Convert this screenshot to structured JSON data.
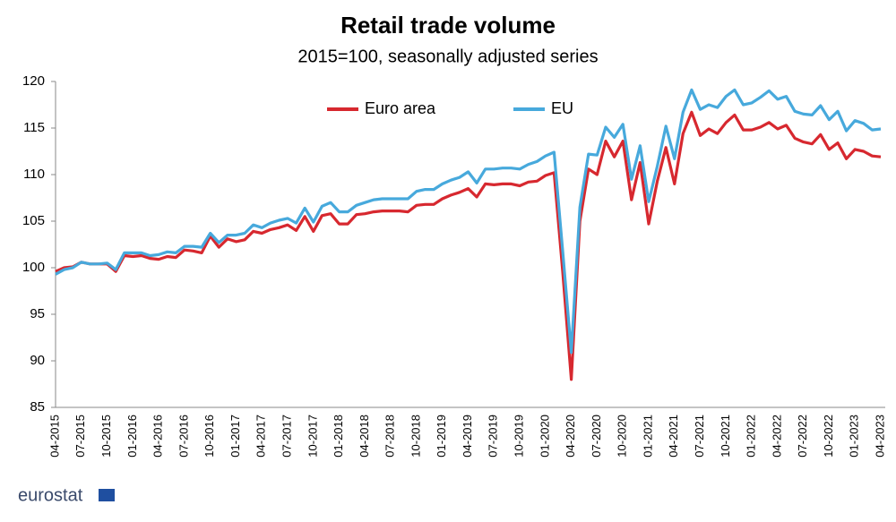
{
  "chart_data": {
    "type": "line",
    "title": "Retail trade volume",
    "subtitle": "2015=100, seasonally adjusted series",
    "source_logo": "eurostat",
    "categories": [
      "04-2015",
      null,
      null,
      "07-2015",
      null,
      null,
      "10-2015",
      null,
      null,
      "01-2016",
      null,
      null,
      "04-2016",
      null,
      null,
      "07-2016",
      null,
      null,
      "10-2016",
      null,
      null,
      "01-2017",
      null,
      null,
      "04-2017",
      null,
      null,
      "07-2017",
      null,
      null,
      "10-2017",
      null,
      null,
      "01-2018",
      null,
      null,
      "04-2018",
      null,
      null,
      "07-2018",
      null,
      null,
      "10-2018",
      null,
      null,
      "01-2019",
      null,
      null,
      "04-2019",
      null,
      null,
      "07-2019",
      null,
      null,
      "10-2019",
      null,
      null,
      "01-2020",
      null,
      null,
      "04-2020",
      null,
      null,
      "07-2020",
      null,
      null,
      "10-2020",
      null,
      null,
      "01-2021",
      null,
      null,
      "04-2021",
      null,
      null,
      "07-2021",
      null,
      null,
      "10-2021",
      null,
      null,
      "01-2022",
      null,
      null,
      "04-2022",
      null,
      null,
      "07-2022",
      null,
      null,
      "10-2022",
      null,
      null,
      "01-2023",
      null,
      null,
      "04-2023"
    ],
    "series": [
      {
        "name": "Euro area",
        "color": "#d7282f",
        "values": [
          99.6,
          100.0,
          100.1,
          100.6,
          100.4,
          100.4,
          100.4,
          99.6,
          101.3,
          101.2,
          101.3,
          101.0,
          100.9,
          101.2,
          101.1,
          101.9,
          101.8,
          101.6,
          103.4,
          102.2,
          103.1,
          102.8,
          103.0,
          103.9,
          103.7,
          104.1,
          104.3,
          104.6,
          104.0,
          105.5,
          103.9,
          105.6,
          105.8,
          104.7,
          104.7,
          105.7,
          105.8,
          106.0,
          106.1,
          106.1,
          106.1,
          106.0,
          106.7,
          106.8,
          106.8,
          107.4,
          107.8,
          108.1,
          108.5,
          107.6,
          109.0,
          108.9,
          109.0,
          109.0,
          108.8,
          109.2,
          109.3,
          109.9,
          110.2,
          99.6,
          88.0,
          105.0,
          110.6,
          110.0,
          113.6,
          111.9,
          113.6,
          107.3,
          111.3,
          104.7,
          109.3,
          112.9,
          109.0,
          114.4,
          116.7,
          114.2,
          114.9,
          114.4,
          115.6,
          116.4,
          114.8,
          114.8,
          115.1,
          115.6,
          114.9,
          115.3,
          113.9,
          113.5,
          113.3,
          114.3,
          112.7,
          113.4,
          111.7,
          112.7,
          112.5,
          112.0,
          111.9
        ]
      },
      {
        "name": "EU",
        "color": "#47a9dc",
        "values": [
          99.3,
          99.8,
          100.0,
          100.6,
          100.4,
          100.4,
          100.5,
          99.8,
          101.6,
          101.6,
          101.6,
          101.3,
          101.4,
          101.7,
          101.6,
          102.3,
          102.3,
          102.2,
          103.7,
          102.7,
          103.5,
          103.5,
          103.7,
          104.6,
          104.3,
          104.8,
          105.1,
          105.3,
          104.8,
          106.4,
          104.9,
          106.6,
          107.0,
          106.0,
          106.0,
          106.7,
          107.0,
          107.3,
          107.4,
          107.4,
          107.4,
          107.4,
          108.2,
          108.4,
          108.4,
          109.0,
          109.4,
          109.7,
          110.3,
          109.1,
          110.6,
          110.6,
          110.7,
          110.7,
          110.6,
          111.1,
          111.4,
          112.0,
          112.4,
          101.8,
          90.9,
          106.5,
          112.2,
          112.1,
          115.1,
          114.0,
          115.4,
          109.5,
          113.1,
          107.1,
          110.9,
          115.2,
          111.7,
          116.7,
          119.1,
          117.0,
          117.5,
          117.2,
          118.4,
          119.1,
          117.5,
          117.7,
          118.3,
          119.0,
          118.1,
          118.4,
          116.8,
          116.5,
          116.4,
          117.4,
          115.9,
          116.8,
          114.7,
          115.8,
          115.5,
          114.8,
          114.9
        ]
      }
    ],
    "ylim": [
      85,
      120
    ],
    "yticks": [
      85,
      90,
      95,
      100,
      105,
      110,
      115,
      120
    ],
    "grid": false,
    "legend": "top"
  }
}
